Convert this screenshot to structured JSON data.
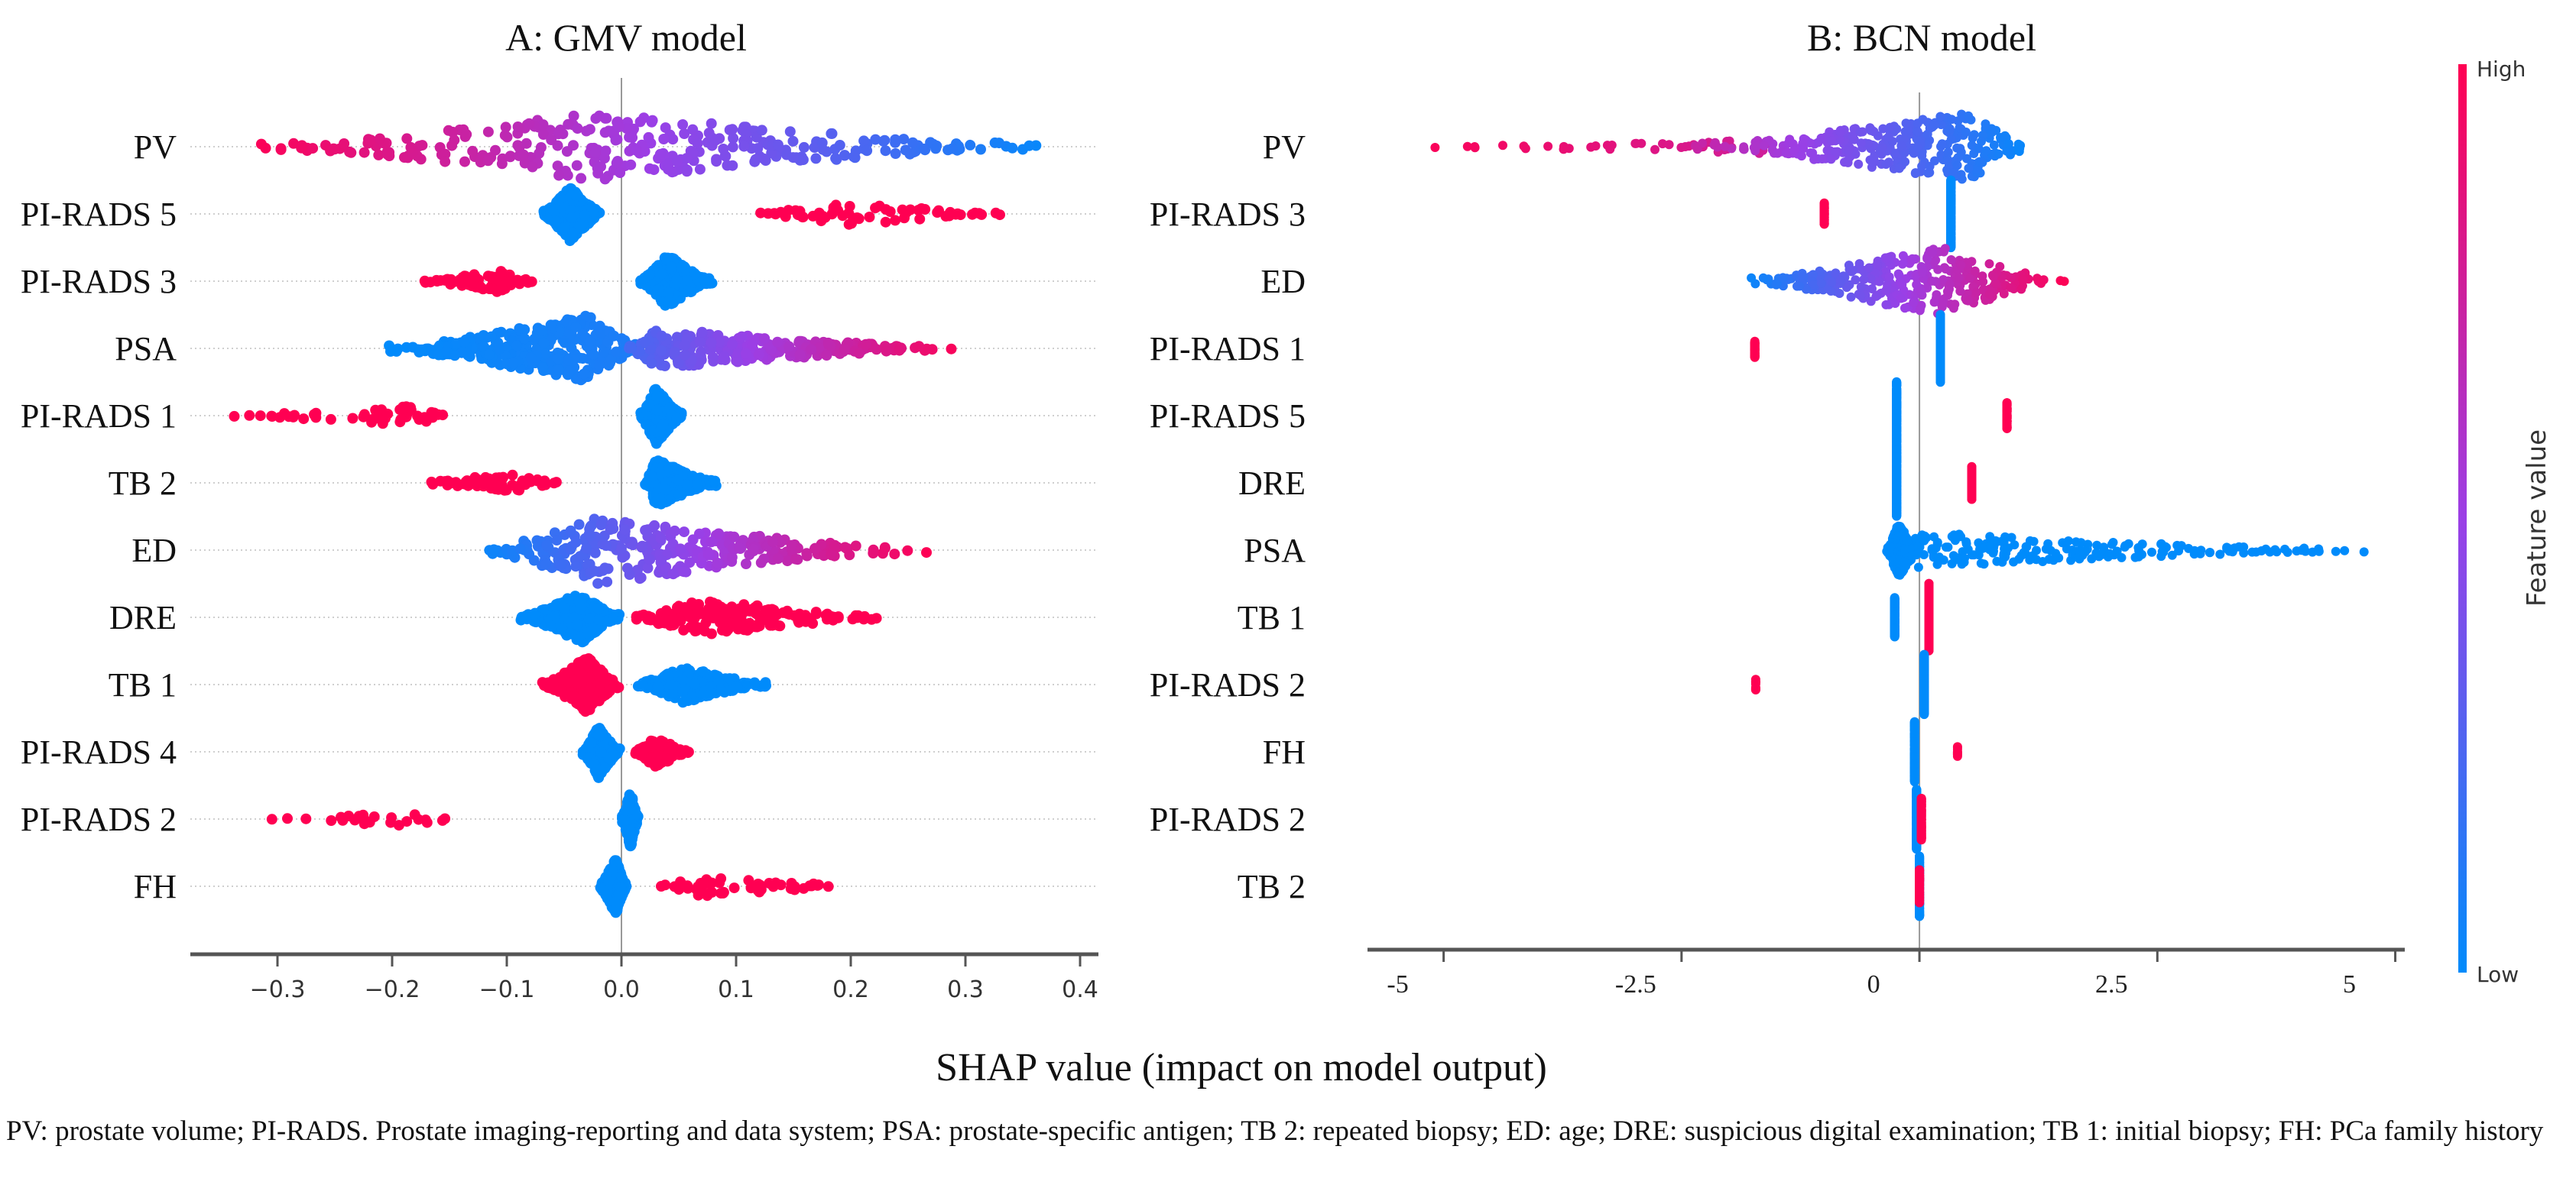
{
  "colors": {
    "high": "#ff0052",
    "mid": "#9b3fe6",
    "low": "#008bfb"
  },
  "xlabel": "SHAP value (impact on model output)",
  "colorbar": {
    "high": "High",
    "low": "Low",
    "label": "Feature value"
  },
  "caption": "PV: prostate volume; PI-RADS. Prostate imaging-reporting and data system; PSA: prostate-specific antigen; TB 2: repeated biopsy; ED: age; DRE: suspicious digital examination; TB 1: initial biopsy; FH: PCa family history",
  "chart_data": [
    {
      "type": "scatter",
      "title": "A: GMV model",
      "xlim": [
        -0.376,
        0.416
      ],
      "reference_line": 0,
      "grid": "dotted row guides",
      "xticks": [
        -0.3,
        -0.2,
        -0.1,
        0.0,
        0.1,
        0.2,
        0.3,
        0.4
      ],
      "xtick_labels": [
        "−0.3",
        "−0.2",
        "−0.1",
        "0.0",
        "0.1",
        "0.2",
        "0.3",
        "0.4"
      ],
      "features": [
        {
          "label": "PV",
          "clusters": [
            {
              "min": -0.33,
              "peak": -0.02,
              "max": 0.38,
              "n": 700,
              "fv": [
                1,
                0
              ]
            }
          ]
        },
        {
          "label": "PI-RADS 5",
          "clusters": [
            {
              "min": -0.07,
              "peak": -0.045,
              "max": -0.015,
              "n": 450,
              "fv": [
                0,
                0
              ]
            },
            {
              "min": 0.1,
              "peak": 0.2,
              "max": 0.35,
              "n": 60,
              "fv": [
                1,
                1
              ]
            }
          ]
        },
        {
          "label": "PI-RADS 3",
          "clusters": [
            {
              "min": -0.18,
              "peak": -0.11,
              "max": -0.07,
              "n": 70,
              "fv": [
                1,
                1
              ]
            },
            {
              "min": 0.015,
              "peak": 0.04,
              "max": 0.08,
              "n": 450,
              "fv": [
                0,
                0
              ]
            }
          ]
        },
        {
          "label": "PSA",
          "clusters": [
            {
              "min": -0.21,
              "peak": -0.03,
              "max": 0.02,
              "n": 700,
              "fv": [
                0,
                0.1
              ]
            },
            {
              "min": 0.0,
              "peak": 0.03,
              "max": 0.3,
              "n": 250,
              "fv": [
                0.2,
                1
              ]
            }
          ]
        },
        {
          "label": "PI-RADS 1",
          "clusters": [
            {
              "min": -0.345,
              "peak": -0.18,
              "max": -0.135,
              "n": 50,
              "fv": [
                1,
                1
              ]
            },
            {
              "min": 0.015,
              "peak": 0.03,
              "max": 0.055,
              "n": 500,
              "fv": [
                0,
                0
              ]
            }
          ]
        },
        {
          "label": "TB 2",
          "clusters": [
            {
              "min": -0.185,
              "peak": -0.09,
              "max": -0.055,
              "n": 60,
              "fv": [
                1,
                1
              ]
            },
            {
              "min": 0.02,
              "peak": 0.03,
              "max": 0.085,
              "n": 350,
              "fv": [
                0,
                0
              ]
            }
          ]
        },
        {
          "label": "ED",
          "clusters": [
            {
              "min": -0.13,
              "peak": -0.02,
              "max": 0.27,
              "n": 700,
              "fv": [
                0,
                1
              ]
            }
          ]
        },
        {
          "label": "DRE",
          "clusters": [
            {
              "min": -0.09,
              "peak": -0.035,
              "max": 0.0,
              "n": 400,
              "fv": [
                0,
                0
              ]
            },
            {
              "min": 0.0,
              "peak": 0.07,
              "max": 0.25,
              "n": 180,
              "fv": [
                1,
                1
              ]
            }
          ]
        },
        {
          "label": "TB 1",
          "clusters": [
            {
              "min": -0.07,
              "peak": -0.03,
              "max": 0.0,
              "n": 500,
              "fv": [
                1,
                1
              ]
            },
            {
              "min": 0.01,
              "peak": 0.055,
              "max": 0.13,
              "n": 200,
              "fv": [
                0,
                0
              ]
            }
          ]
        },
        {
          "label": "PI-RADS 4",
          "clusters": [
            {
              "min": -0.035,
              "peak": -0.02,
              "max": 0.0,
              "n": 400,
              "fv": [
                0,
                0
              ]
            },
            {
              "min": 0.01,
              "peak": 0.03,
              "max": 0.06,
              "n": 150,
              "fv": [
                1,
                1
              ]
            }
          ]
        },
        {
          "label": "PI-RADS 2",
          "clusters": [
            {
              "min": -0.31,
              "peak": -0.2,
              "max": -0.13,
              "n": 25,
              "fv": [
                1,
                1
              ]
            },
            {
              "min": 0.0,
              "peak": 0.008,
              "max": 0.015,
              "n": 500,
              "fv": [
                0,
                0
              ]
            }
          ]
        },
        {
          "label": "FH",
          "clusters": [
            {
              "min": -0.02,
              "peak": -0.005,
              "max": 0.005,
              "n": 500,
              "fv": [
                0,
                0
              ]
            },
            {
              "min": 0.03,
              "peak": 0.07,
              "max": 0.22,
              "n": 50,
              "fv": [
                1,
                1
              ]
            }
          ]
        }
      ]
    },
    {
      "type": "scatter",
      "title": "B: BCN model",
      "xlim": [
        -5.8,
        5.1
      ],
      "reference_line": 0,
      "grid": "none",
      "xticks": [
        -5,
        -2.5,
        0,
        2.5,
        5
      ],
      "xtick_labels": [
        "-5",
        "-2.5",
        "0",
        "2.5",
        "5"
      ],
      "features": [
        {
          "label": "PV",
          "clusters": [
            {
              "min": -5.5,
              "peak": -1.6,
              "max": -1.5,
              "n": 40,
              "fv": [
                1,
                0.75
              ]
            },
            {
              "min": -2.5,
              "peak": 0.5,
              "max": 1.2,
              "n": 900,
              "fv": [
                0.75,
                0
              ]
            }
          ]
        },
        {
          "label": "PI-RADS 3",
          "clusters": [
            {
              "min": -1.0,
              "peak": -1.0,
              "max": -1.0,
              "n": 60,
              "fv": [
                1,
                1
              ]
            },
            {
              "min": 0.33,
              "peak": 0.33,
              "max": 0.33,
              "n": 700,
              "fv": [
                0,
                0
              ]
            }
          ]
        },
        {
          "label": "ED",
          "clusters": [
            {
              "min": -1.9,
              "peak": 0.2,
              "max": 1.57,
              "n": 900,
              "fv": [
                0,
                1
              ]
            }
          ]
        },
        {
          "label": "PI-RADS 1",
          "clusters": [
            {
              "min": -1.73,
              "peak": -1.73,
              "max": -1.73,
              "n": 40,
              "fv": [
                1,
                1
              ]
            },
            {
              "min": 0.22,
              "peak": 0.22,
              "max": 0.22,
              "n": 700,
              "fv": [
                0,
                0
              ]
            }
          ]
        },
        {
          "label": "PI-RADS 5",
          "clusters": [
            {
              "min": -0.24,
              "peak": -0.24,
              "max": -0.24,
              "n": 700,
              "fv": [
                0,
                0
              ]
            },
            {
              "min": 0.92,
              "peak": 0.92,
              "max": 0.92,
              "n": 90,
              "fv": [
                1,
                1
              ]
            }
          ]
        },
        {
          "label": "DRE",
          "clusters": [
            {
              "min": -0.24,
              "peak": -0.24,
              "max": -0.24,
              "n": 700,
              "fv": [
                0,
                0
              ]
            },
            {
              "min": 0.55,
              "peak": 0.55,
              "max": 0.55,
              "n": 150,
              "fv": [
                1,
                1
              ]
            }
          ]
        },
        {
          "label": "PSA",
          "clusters": [
            {
              "min": -0.35,
              "peak": -0.22,
              "max": 0.0,
              "n": 500,
              "fv": [
                0,
                0
              ]
            },
            {
              "min": -0.2,
              "peak": -0.15,
              "max": 4.7,
              "n": 200,
              "fv": [
                0,
                0
              ]
            }
          ]
        },
        {
          "label": "TB 1",
          "clusters": [
            {
              "min": -0.26,
              "peak": -0.26,
              "max": -0.26,
              "n": 220,
              "fv": [
                0,
                0
              ]
            },
            {
              "min": 0.1,
              "peak": 0.1,
              "max": 0.1,
              "n": 700,
              "fv": [
                1,
                1
              ]
            }
          ]
        },
        {
          "label": "PI-RADS 2",
          "clusters": [
            {
              "min": -1.72,
              "peak": -1.72,
              "max": -1.72,
              "n": 10,
              "fv": [
                1,
                1
              ]
            },
            {
              "min": 0.05,
              "peak": 0.05,
              "max": 0.05,
              "n": 550,
              "fv": [
                0,
                0
              ]
            }
          ]
        },
        {
          "label": "FH",
          "clusters": [
            {
              "min": -0.05,
              "peak": -0.05,
              "max": -0.05,
              "n": 550,
              "fv": [
                0,
                0
              ]
            },
            {
              "min": 0.4,
              "peak": 0.4,
              "max": 0.4,
              "n": 10,
              "fv": [
                1,
                1
              ]
            }
          ]
        },
        {
          "label": "PI-RADS 2",
          "clusters": [
            {
              "min": -0.03,
              "peak": -0.03,
              "max": -0.03,
              "n": 550,
              "fv": [
                0,
                0
              ]
            },
            {
              "min": 0.02,
              "peak": 0.02,
              "max": 0.02,
              "n": 250,
              "fv": [
                1,
                1
              ]
            }
          ]
        },
        {
          "label": "TB 2",
          "clusters": [
            {
              "min": 0.0,
              "peak": 0.0,
              "max": 0.0,
              "n": 550,
              "fv": [
                0,
                0
              ]
            },
            {
              "min": 0.0,
              "peak": 0.0,
              "max": 0.0,
              "n": 150,
              "fv": [
                1,
                1
              ]
            }
          ]
        }
      ]
    }
  ]
}
